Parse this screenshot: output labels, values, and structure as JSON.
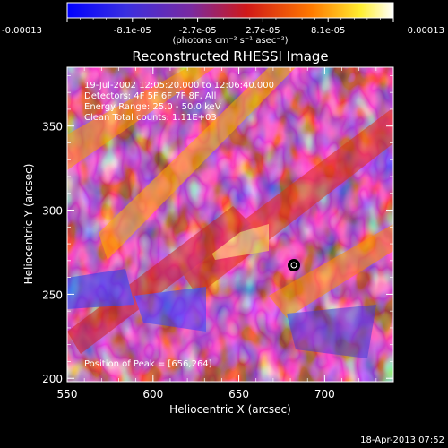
{
  "colorbar": {
    "tick_labels": [
      "-0.00013",
      "-8.1e-05",
      "-2.7e-05",
      "2.7e-05",
      "8.1e-05",
      "0.00013"
    ],
    "unit_label": "(photons cm⁻² s⁻¹ asec⁻²)",
    "range": [
      -0.00013,
      0.00013
    ],
    "colors": [
      "#0000ff",
      "#4a2fd8",
      "#8c2a8c",
      "#e01010",
      "#ff8000",
      "#ffff00",
      "#ffffff"
    ]
  },
  "plot": {
    "title": "Reconstructed RHESSI Image",
    "xlabel": "Heliocentric X (arcsec)",
    "ylabel": "Heliocentric Y (arcsec)",
    "x_ticks": [
      "550",
      "600",
      "650",
      "700"
    ],
    "y_ticks": [
      "200",
      "250",
      "300",
      "350"
    ],
    "xlim": [
      550,
      740
    ],
    "ylim": [
      198,
      385
    ],
    "info_lines": [
      "19-Jul-2002 12:05:20.000 to 12:06:40.000",
      "Detectors: 4F 5F 6F 7F 8F, All",
      "Energy Range: 25.0 - 50.0 keV",
      "Clean    Total counts: 1.11E+03"
    ],
    "peak_label": "Position of Peak = [656,264]",
    "peak_position": [
      656,
      264
    ]
  },
  "footer": {
    "timestamp": "18-Apr-2013 07:52"
  }
}
